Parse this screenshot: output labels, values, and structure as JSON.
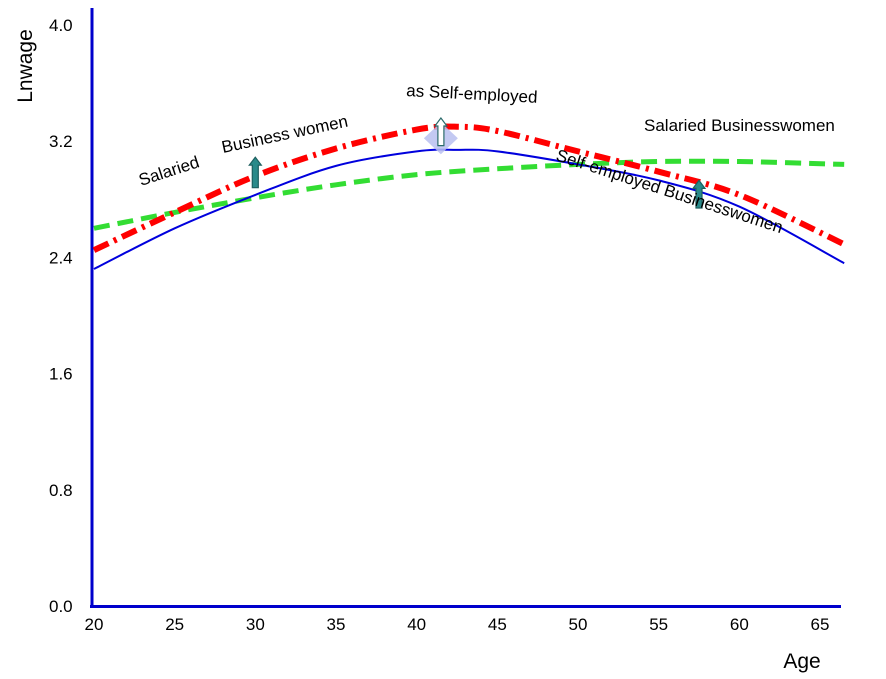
{
  "chart_data": {
    "type": "line",
    "xlabel": "Age",
    "ylabel": "Lnwage",
    "xlim": [
      20,
      66.5
    ],
    "ylim": [
      0,
      4.1
    ],
    "x_ticks": [
      "20",
      "25",
      "30",
      "35",
      "40",
      "45",
      "50",
      "55",
      "60",
      "65"
    ],
    "y_ticks": [
      "0.0",
      "0.8",
      "1.6",
      "2.4",
      "3.2",
      "4.0"
    ],
    "grid": false,
    "legend": "none",
    "colors": {
      "axis": "#0000cc",
      "salaried_as_self_employed": "#ff0000",
      "self_employed": "#0000dd",
      "salaried": "#33dd33",
      "arrow": "#2a8a8a",
      "peak_marker": "#b8bff0"
    },
    "series": [
      {
        "name": "Salaried Business women as Self-employed",
        "style": "dash-dot",
        "x": [
          20,
          25,
          30,
          35,
          40,
          42.5,
          45,
          50,
          55,
          60,
          66.5
        ],
        "y": [
          2.45,
          2.71,
          2.96,
          3.15,
          3.28,
          3.3,
          3.27,
          3.13,
          2.99,
          2.83,
          2.49
        ]
      },
      {
        "name": "Self-employed Businesswomen",
        "style": "solid",
        "x": [
          20,
          25,
          30,
          35,
          40,
          42.5,
          45,
          50,
          55,
          60,
          66.5
        ],
        "y": [
          2.32,
          2.6,
          2.83,
          3.03,
          3.13,
          3.14,
          3.13,
          3.04,
          2.93,
          2.75,
          2.36
        ]
      },
      {
        "name": "Salaried Businesswomen",
        "style": "dashed",
        "x": [
          20,
          25,
          30,
          35,
          40,
          45,
          50,
          55,
          60,
          66.5
        ],
        "y": [
          2.6,
          2.71,
          2.81,
          2.9,
          2.97,
          3.01,
          3.04,
          3.06,
          3.06,
          3.04
        ]
      }
    ],
    "annotations": [
      {
        "type": "arrow-up",
        "x": 30,
        "y_from": 2.88,
        "y_to": 3.09
      },
      {
        "type": "arrow-up",
        "x": 57.5,
        "y_from": 2.74,
        "y_to": 2.93
      },
      {
        "type": "diamond",
        "x": 41.5,
        "y": 3.22
      },
      {
        "type": "arrow-up-hollow",
        "x": 41.5,
        "y_from": 3.17,
        "y_to": 3.36
      }
    ],
    "labels": {
      "salaried_as_self": [
        "Salaried",
        "Business women",
        "as Self-employed"
      ],
      "salaried": "Salaried Businesswomen",
      "self_employed": "Self-employed Businesswomen"
    }
  }
}
